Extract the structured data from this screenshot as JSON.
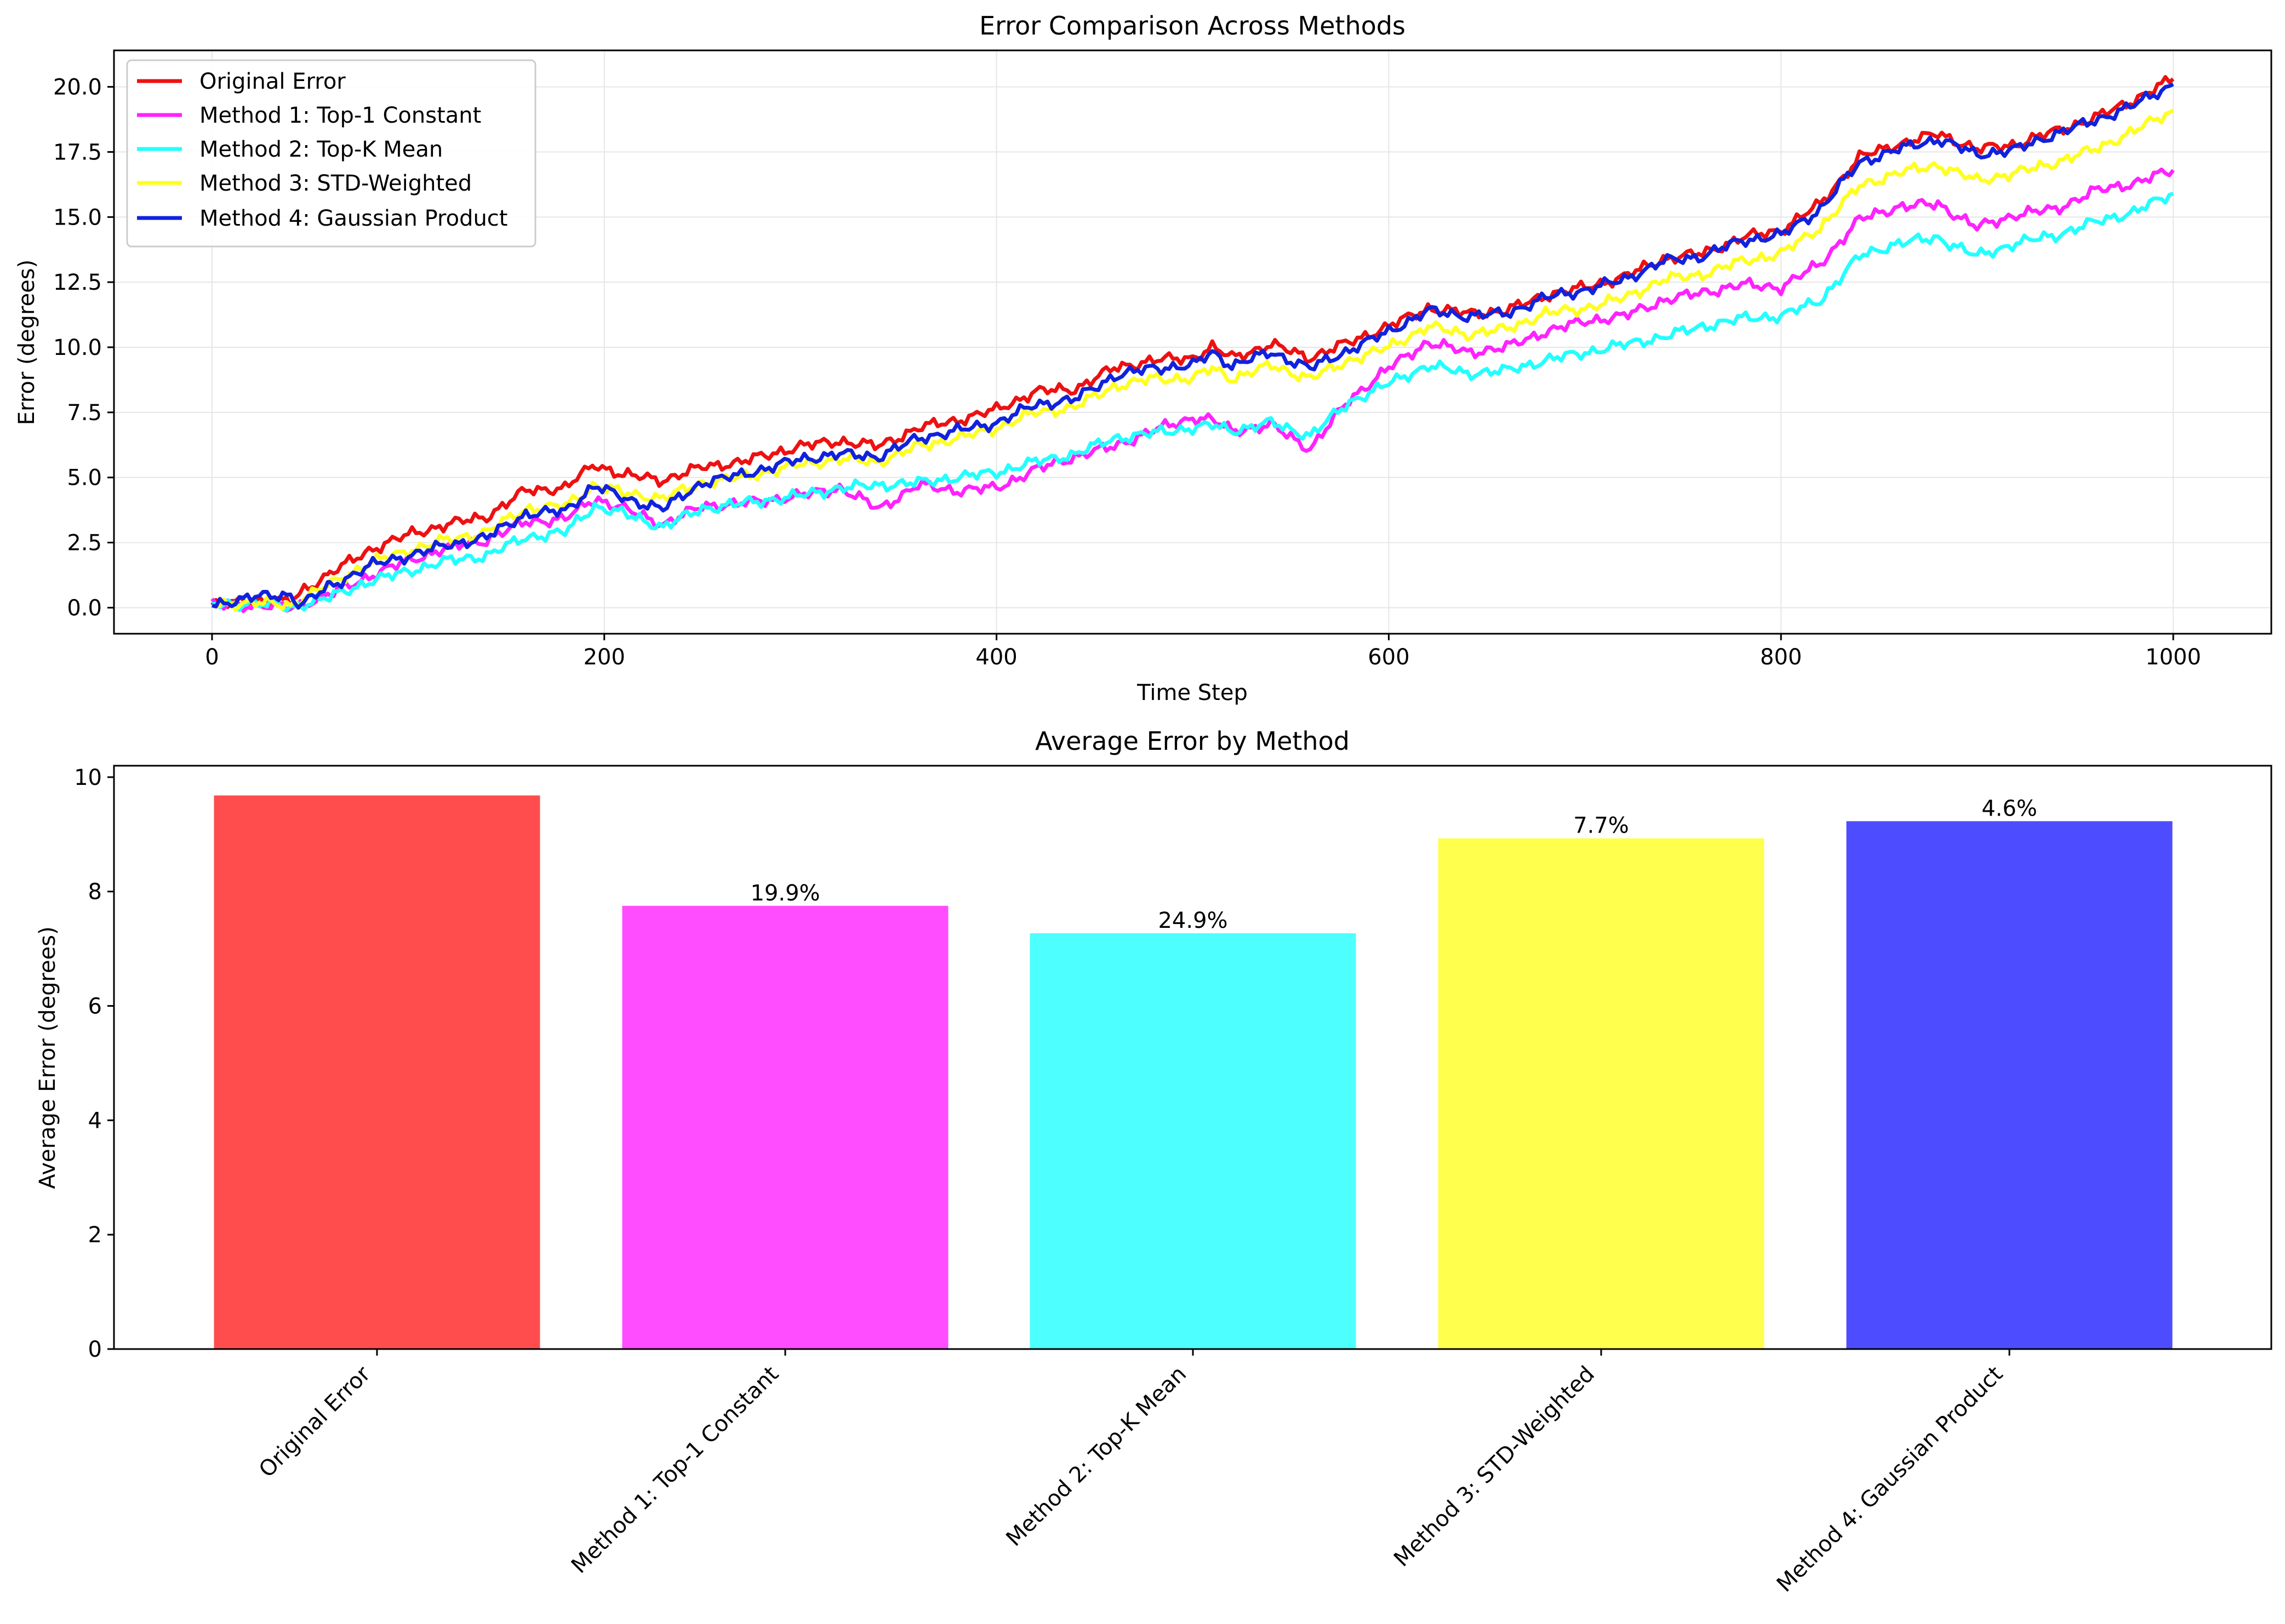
{
  "colors": {
    "original": "#ee1111",
    "top1": "#ff22ff",
    "topk": "#22ffff",
    "std": "#ffff22",
    "gaussian": "#1122dd",
    "bar_original": "#ff4d4d",
    "bar_top1": "#ff4dff",
    "bar_topk": "#4dffff",
    "bar_std": "#ffff4d",
    "bar_gaussian": "#4d4dff",
    "grid": "#e6e6e6"
  },
  "chart_data": [
    {
      "type": "line",
      "title": "Error Comparison Across Methods",
      "xlabel": "Time Step",
      "ylabel": "Error (degrees)",
      "xlim": [
        -50,
        1050
      ],
      "ylim": [
        -1.0,
        21.4
      ],
      "xticks": [
        0,
        200,
        400,
        600,
        800,
        1000
      ],
      "yticks": [
        0.0,
        2.5,
        5.0,
        7.5,
        10.0,
        12.5,
        15.0,
        17.5,
        20.0
      ],
      "xtick_labels": [
        "0",
        "200",
        "400",
        "600",
        "800",
        "1000"
      ],
      "ytick_labels": [
        "0.0",
        "2.5",
        "5.0",
        "7.5",
        "10.0",
        "12.5",
        "15.0",
        "17.5",
        "20.0"
      ],
      "grid": true,
      "legend": "upper-left",
      "x": [
        0,
        20,
        40,
        45,
        60,
        80,
        100,
        120,
        140,
        160,
        180,
        195,
        210,
        230,
        250,
        270,
        300,
        320,
        340,
        360,
        380,
        400,
        420,
        440,
        460,
        480,
        500,
        510,
        520,
        540,
        560,
        580,
        600,
        620,
        640,
        660,
        680,
        700,
        720,
        740,
        760,
        780,
        800,
        820,
        840,
        860,
        880,
        900,
        920,
        940,
        960,
        980,
        1000
      ],
      "series": [
        {
          "name": "Original Error",
          "color_key": "original",
          "values": [
            0.1,
            0.3,
            0.2,
            0.6,
            1.3,
            2.2,
            2.8,
            3.2,
            3.5,
            4.5,
            4.6,
            5.5,
            5.1,
            4.9,
            5.4,
            5.6,
            6.2,
            6.4,
            6.2,
            6.9,
            7.2,
            7.6,
            8.3,
            8.4,
            9.2,
            9.5,
            9.6,
            10.0,
            9.6,
            10.1,
            9.6,
            10.2,
            10.8,
            11.5,
            11.3,
            11.4,
            12.0,
            12.3,
            12.7,
            13.4,
            13.6,
            14.2,
            14.5,
            15.5,
            17.3,
            17.8,
            18.2,
            17.6,
            17.8,
            18.3,
            18.8,
            19.5,
            20.3
          ]
        },
        {
          "name": "Method 1: Top-1 Constant",
          "color_key": "top1",
          "values": [
            0.1,
            0.1,
            0.0,
            0.1,
            0.5,
            1.2,
            1.8,
            2.3,
            2.6,
            3.3,
            3.4,
            4.2,
            3.8,
            3.2,
            3.9,
            4.0,
            4.3,
            4.6,
            3.8,
            4.7,
            4.5,
            4.6,
            5.3,
            5.8,
            6.2,
            6.8,
            7.3,
            7.2,
            6.8,
            7.0,
            6.1,
            8.0,
            9.2,
            10.2,
            9.8,
            10.0,
            10.6,
            11.0,
            11.2,
            11.8,
            12.1,
            12.4,
            12.3,
            13.2,
            14.9,
            15.4,
            15.5,
            14.6,
            15.1,
            15.3,
            16.0,
            16.3,
            16.8
          ]
        },
        {
          "name": "Method 2: Top-K Mean",
          "color_key": "topk",
          "values": [
            0.1,
            0.2,
            0.0,
            0.1,
            0.4,
            1.0,
            1.4,
            1.8,
            2.0,
            2.7,
            2.9,
            3.9,
            3.6,
            3.1,
            3.8,
            4.0,
            4.3,
            4.6,
            4.7,
            4.8,
            5.0,
            5.2,
            5.6,
            5.9,
            6.5,
            6.7,
            6.9,
            7.0,
            6.8,
            7.1,
            6.6,
            7.9,
            8.6,
            9.3,
            9.0,
            9.1,
            9.5,
            9.8,
            10.1,
            10.4,
            10.8,
            11.1,
            11.2,
            11.8,
            13.5,
            14.0,
            14.2,
            13.5,
            14.0,
            14.3,
            14.8,
            15.2,
            15.9
          ]
        },
        {
          "name": "Method 3: STD-Weighted",
          "color_key": "std",
          "values": [
            0.1,
            0.2,
            0.1,
            0.3,
            0.9,
            1.7,
            2.2,
            2.6,
            2.9,
            3.8,
            3.9,
            4.7,
            4.4,
            4.2,
            4.8,
            5.0,
            5.5,
            5.7,
            5.6,
            6.2,
            6.5,
            6.9,
            7.5,
            7.7,
            8.5,
            8.8,
            8.8,
            9.2,
            8.8,
            9.3,
            8.8,
            9.5,
            10.0,
            10.8,
            10.5,
            10.7,
            11.3,
            11.5,
            11.9,
            12.6,
            12.8,
            13.3,
            13.6,
            14.6,
            16.2,
            16.7,
            17.0,
            16.4,
            16.7,
            17.1,
            17.6,
            18.3,
            19.1
          ]
        },
        {
          "name": "Method 4: Gaussian Product",
          "color_key": "gaussian",
          "values": [
            0.1,
            0.4,
            0.5,
            0.1,
            0.8,
            1.6,
            2.0,
            2.4,
            2.7,
            3.6,
            3.7,
            4.7,
            4.2,
            3.8,
            4.8,
            5.1,
            5.7,
            5.9,
            5.8,
            6.5,
            6.8,
            7.1,
            7.8,
            8.0,
            8.9,
            9.2,
            9.3,
            9.8,
            9.3,
            9.8,
            9.2,
            9.9,
            10.6,
            11.4,
            11.2,
            11.3,
            11.9,
            12.2,
            12.6,
            13.3,
            13.5,
            14.1,
            14.3,
            15.3,
            17.1,
            17.6,
            18.0,
            17.4,
            17.6,
            18.2,
            18.7,
            19.3,
            20.1
          ]
        }
      ]
    },
    {
      "type": "bar",
      "title": "Average Error by Method",
      "xlabel": "",
      "ylabel": "Average Error (degrees)",
      "ylim": [
        0,
        10.2
      ],
      "yticks": [
        0,
        2,
        4,
        6,
        8,
        10
      ],
      "ytick_labels": [
        "0",
        "2",
        "4",
        "6",
        "8",
        "10"
      ],
      "categories": [
        "Original Error",
        "Method 1: Top-1 Constant",
        "Method 2: Top-K Mean",
        "Method 3: STD-Weighted",
        "Method 4: Gaussian Product"
      ],
      "values": [
        9.68,
        7.75,
        7.27,
        8.93,
        9.23
      ],
      "bar_labels": [
        "",
        "19.9%",
        "24.9%",
        "7.7%",
        "4.6%"
      ],
      "color_keys": [
        "bar_original",
        "bar_top1",
        "bar_topk",
        "bar_std",
        "bar_gaussian"
      ]
    }
  ]
}
